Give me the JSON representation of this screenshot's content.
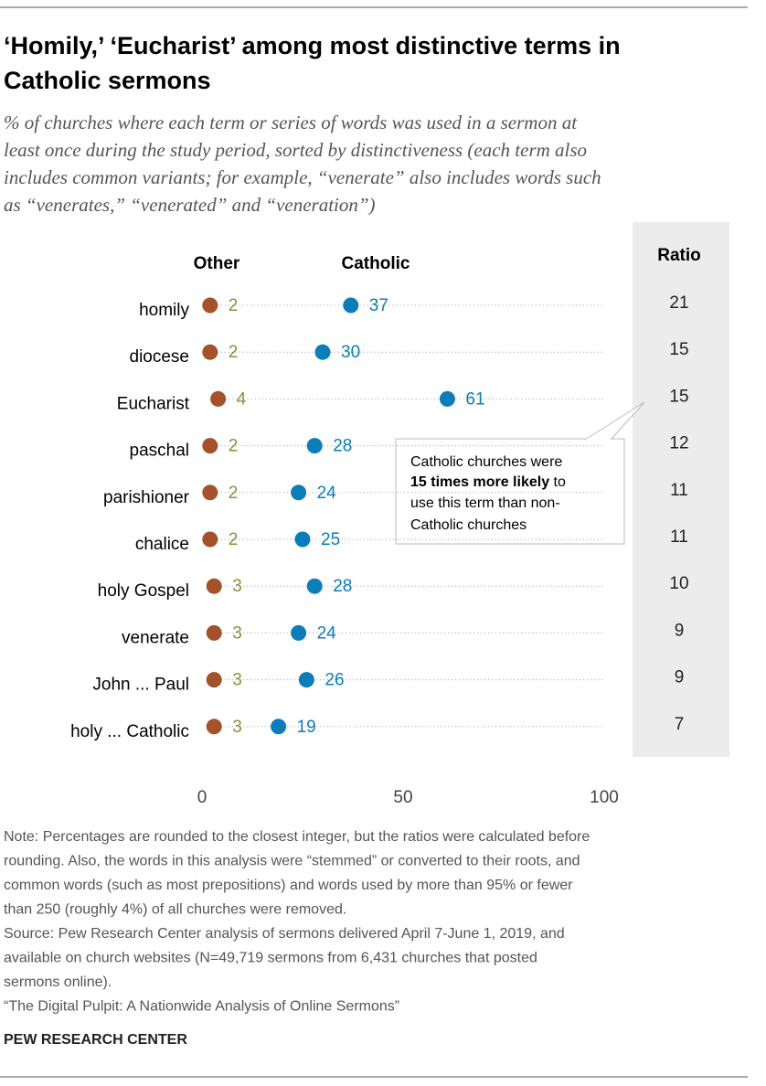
{
  "title_lines": [
    "‘Homily,’ ‘Eucharist’ among most distinctive terms in",
    "Catholic sermons"
  ],
  "subtitle_lines": [
    "% of churches where each term or series of words was used in a sermon at",
    "least once during the study period, sorted by distinctiveness (each term also",
    "includes common variants; for example, “venerate” also includes words such",
    "as “venerates,” “venerated” and “veneration”)"
  ],
  "chart_data": {
    "type": "dot",
    "categories": [
      "homily",
      "diocese",
      "Eucharist",
      "paschal",
      "parishioner",
      "chalice",
      "holy Gospel",
      "venerate",
      "John ... Paul",
      "holy ... Catholic"
    ],
    "series": [
      {
        "name": "Other",
        "color": "#a3522a",
        "label_color": "#8c8f3c",
        "values": [
          2,
          2,
          4,
          2,
          2,
          2,
          3,
          3,
          3,
          3
        ]
      },
      {
        "name": "Catholic",
        "color": "#0b7db8",
        "label_color": "#0b7db8",
        "values": [
          37,
          30,
          61,
          28,
          24,
          25,
          28,
          24,
          26,
          19
        ]
      }
    ],
    "xlim": [
      0,
      100
    ],
    "xticks": [
      0,
      50,
      100
    ],
    "ratio_header": "Ratio",
    "ratios": [
      21,
      15,
      15,
      12,
      11,
      11,
      10,
      9,
      9,
      7
    ],
    "annotation": {
      "line1": "Catholic churches were",
      "bold": "15 times more likely",
      "line2_rest": " to",
      "line3": "use this term than non-",
      "line4": "Catholic churches"
    }
  },
  "note_lines": [
    "Note: Percentages are rounded to the closest integer, but the ratios were calculated before",
    "rounding. Also, the words in this analysis were “stemmed” or converted to their roots, and",
    "common words (such as most prepositions) and words used by more than 95% or fewer",
    "than 250 (roughly 4%) of all churches were removed.",
    "Source: Pew Research Center analysis of sermons delivered April 7-June 1, 2019, and",
    "available on church websites (N=49,719 sermons from 6,431 churches that posted",
    "sermons online).",
    "“The Digital Pulpit: A Nationwide Analysis of Online Sermons”"
  ],
  "footer": "PEW RESEARCH CENTER"
}
